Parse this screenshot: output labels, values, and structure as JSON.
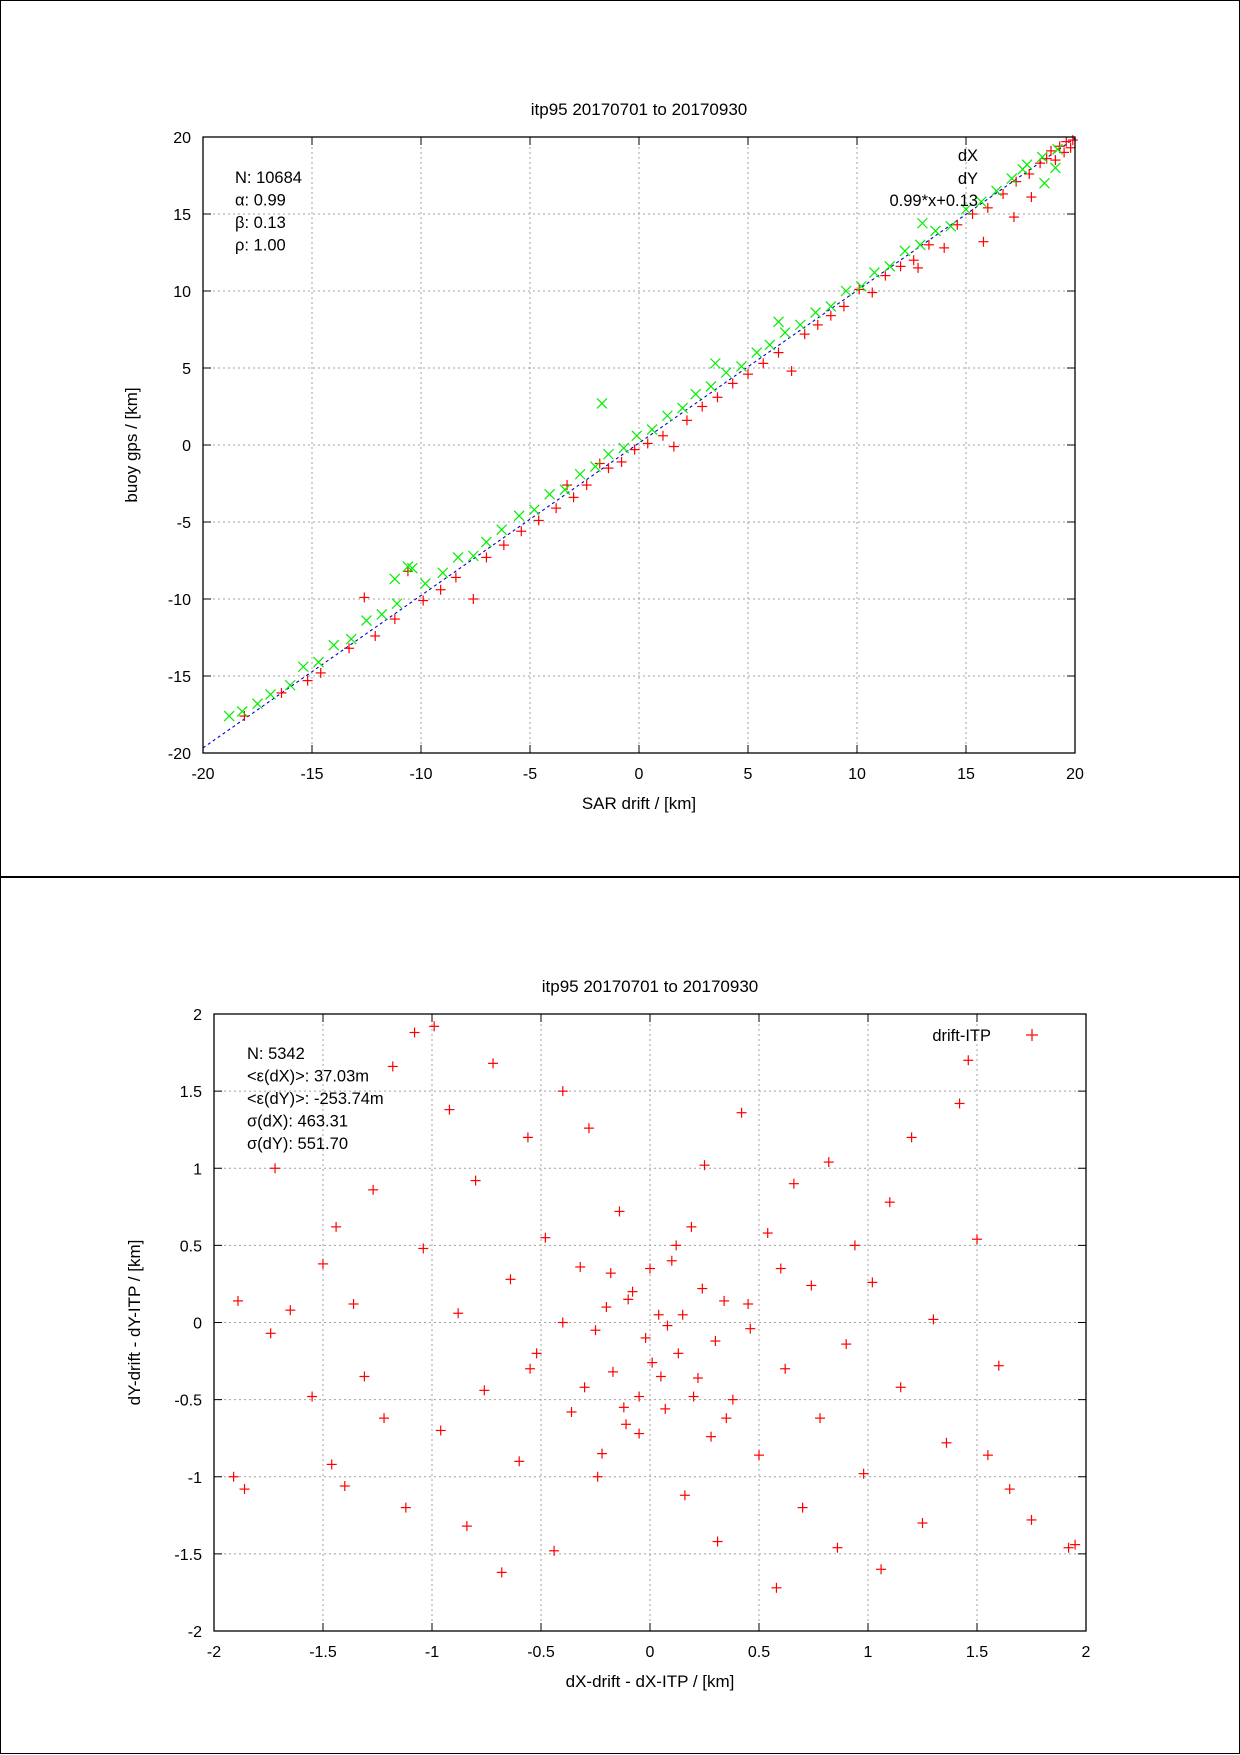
{
  "colors": {
    "red": "#ff0000",
    "green": "#00ee00",
    "fit": "#0000cc"
  },
  "chart_data": [
    {
      "type": "scatter",
      "title": "itp95 20170701 to 20170930",
      "xlabel": "SAR drift / [km]",
      "ylabel": "buoy gps / [km]",
      "xlim": [
        -20,
        20
      ],
      "ylim": [
        -20,
        20
      ],
      "xticks": [
        "-20",
        "-15",
        "-10",
        "-5",
        "0",
        "5",
        "10",
        "15",
        "20"
      ],
      "yticks": [
        "-20",
        "-15",
        "-10",
        "-5",
        "0",
        "5",
        "10",
        "15",
        "20"
      ],
      "grid": true,
      "legend_position": "top-right",
      "stats": [
        "N: 10684",
        "α: 0.99",
        "β: 0.13",
        "ρ: 1.00"
      ],
      "fit": {
        "label": "0.99*x+0.13",
        "slope": 0.99,
        "intercept": 0.13
      },
      "series": [
        {
          "name": "dX",
          "marker": "+",
          "color": "#ff0000",
          "points": [
            [
              -18.1,
              -17.6
            ],
            [
              -16.4,
              -16.1
            ],
            [
              -15.2,
              -15.3
            ],
            [
              -14.6,
              -14.8
            ],
            [
              -13.3,
              -13.2
            ],
            [
              -12.1,
              -12.4
            ],
            [
              -11.2,
              -11.3
            ],
            [
              -10.6,
              -8.2
            ],
            [
              -9.9,
              -10.1
            ],
            [
              -9.1,
              -9.4
            ],
            [
              -8.4,
              -8.6
            ],
            [
              -7.6,
              -10.0
            ],
            [
              -7.0,
              -7.3
            ],
            [
              -6.2,
              -6.5
            ],
            [
              -5.4,
              -5.6
            ],
            [
              -4.6,
              -4.9
            ],
            [
              -3.8,
              -4.1
            ],
            [
              -3.0,
              -3.4
            ],
            [
              -2.4,
              -2.6
            ],
            [
              -1.8,
              -1.2
            ],
            [
              -1.4,
              -1.5
            ],
            [
              -0.8,
              -1.1
            ],
            [
              -0.2,
              -0.3
            ],
            [
              0.4,
              0.1
            ],
            [
              1.1,
              0.6
            ],
            [
              1.6,
              -0.1
            ],
            [
              2.2,
              1.6
            ],
            [
              2.9,
              2.5
            ],
            [
              3.6,
              3.1
            ],
            [
              4.3,
              4.0
            ],
            [
              5.0,
              4.6
            ],
            [
              5.7,
              5.3
            ],
            [
              6.4,
              6.0
            ],
            [
              7.0,
              4.8
            ],
            [
              7.6,
              7.2
            ],
            [
              8.2,
              7.8
            ],
            [
              8.8,
              8.4
            ],
            [
              9.4,
              9.0
            ],
            [
              10.1,
              10.1
            ],
            [
              10.7,
              9.9
            ],
            [
              11.3,
              11.0
            ],
            [
              12.0,
              11.6
            ],
            [
              12.6,
              12.0
            ],
            [
              13.3,
              13.0
            ],
            [
              14.0,
              12.8
            ],
            [
              14.6,
              14.3
            ],
            [
              15.3,
              15.0
            ],
            [
              16.0,
              15.4
            ],
            [
              16.7,
              16.3
            ],
            [
              17.3,
              17.1
            ],
            [
              17.9,
              17.6
            ],
            [
              18.4,
              18.3
            ],
            [
              18.7,
              18.6
            ],
            [
              18.9,
              19.1
            ],
            [
              19.1,
              18.5
            ],
            [
              19.3,
              19.4
            ],
            [
              19.5,
              19.0
            ],
            [
              19.6,
              19.7
            ],
            [
              19.8,
              19.3
            ],
            [
              19.9,
              19.8
            ],
            [
              17.2,
              14.8
            ],
            [
              18.0,
              16.1
            ],
            [
              15.8,
              13.2
            ],
            [
              12.8,
              11.5
            ],
            [
              -3.3,
              -2.6
            ],
            [
              -12.6,
              -9.9
            ]
          ]
        },
        {
          "name": "dY",
          "marker": "x",
          "color": "#00ee00",
          "points": [
            [
              -18.8,
              -17.6
            ],
            [
              -18.2,
              -17.3
            ],
            [
              -17.5,
              -16.8
            ],
            [
              -16.9,
              -16.2
            ],
            [
              -16.0,
              -15.6
            ],
            [
              -15.4,
              -14.4
            ],
            [
              -14.7,
              -14.1
            ],
            [
              -14.0,
              -13.0
            ],
            [
              -13.2,
              -12.6
            ],
            [
              -12.5,
              -11.4
            ],
            [
              -11.8,
              -11.0
            ],
            [
              -11.1,
              -10.3
            ],
            [
              -10.4,
              -8.0
            ],
            [
              -9.8,
              -9.0
            ],
            [
              -9.0,
              -8.3
            ],
            [
              -8.3,
              -7.3
            ],
            [
              -7.6,
              -7.2
            ],
            [
              -7.0,
              -6.3
            ],
            [
              -6.3,
              -5.5
            ],
            [
              -5.5,
              -4.6
            ],
            [
              -4.8,
              -4.2
            ],
            [
              -4.1,
              -3.2
            ],
            [
              -3.4,
              -2.9
            ],
            [
              -2.7,
              -1.9
            ],
            [
              -2.0,
              -1.4
            ],
            [
              -1.4,
              -0.6
            ],
            [
              -0.7,
              -0.2
            ],
            [
              -0.1,
              0.6
            ],
            [
              0.6,
              1.0
            ],
            [
              1.3,
              1.9
            ],
            [
              2.0,
              2.4
            ],
            [
              2.6,
              3.3
            ],
            [
              3.3,
              3.8
            ],
            [
              4.0,
              4.7
            ],
            [
              4.7,
              5.1
            ],
            [
              5.4,
              6.0
            ],
            [
              6.0,
              6.5
            ],
            [
              6.7,
              7.3
            ],
            [
              7.4,
              7.8
            ],
            [
              8.1,
              8.6
            ],
            [
              8.8,
              9.0
            ],
            [
              9.5,
              10.0
            ],
            [
              10.2,
              10.3
            ],
            [
              10.8,
              11.2
            ],
            [
              11.5,
              11.6
            ],
            [
              12.2,
              12.6
            ],
            [
              12.9,
              13.0
            ],
            [
              13.6,
              13.9
            ],
            [
              14.3,
              14.2
            ],
            [
              15.0,
              15.3
            ],
            [
              15.7,
              15.8
            ],
            [
              16.4,
              16.5
            ],
            [
              17.1,
              17.3
            ],
            [
              17.8,
              18.2
            ],
            [
              18.5,
              18.7
            ],
            [
              19.2,
              19.2
            ],
            [
              -1.7,
              2.7
            ],
            [
              -10.6,
              -7.9
            ],
            [
              -11.2,
              -8.7
            ],
            [
              3.5,
              5.3
            ],
            [
              6.4,
              8.0
            ],
            [
              13.0,
              14.4
            ],
            [
              17.6,
              17.9
            ],
            [
              18.6,
              17.0
            ],
            [
              19.1,
              18.0
            ]
          ]
        }
      ]
    },
    {
      "type": "scatter",
      "title": "itp95 20170701 to 20170930",
      "xlabel": "dX-drift - dX-ITP / [km]",
      "ylabel": "dY-drift - dY-ITP / [km]",
      "xlim": [
        -2,
        2
      ],
      "ylim": [
        -2,
        2
      ],
      "xticks": [
        "-2",
        "-1.5",
        "-1",
        "-0.5",
        "0",
        "0.5",
        "1",
        "1.5",
        "2"
      ],
      "yticks": [
        "-2",
        "-1.5",
        "-1",
        "-0.5",
        "0",
        "0.5",
        "1",
        "1.5",
        "2"
      ],
      "grid": true,
      "legend_position": "top-right",
      "stats": [
        "N: 5342",
        "<ε(dX)>:  37.03m",
        "<ε(dY)>: -253.74m",
        "σ(dX):  463.31",
        "σ(dY):  551.70"
      ],
      "series": [
        {
          "name": "drift-ITP",
          "marker": "+",
          "color": "#ff0000",
          "points": [
            [
              -1.91,
              -1.0
            ],
            [
              -1.89,
              0.14
            ],
            [
              -1.86,
              -1.08
            ],
            [
              -1.74,
              -0.07
            ],
            [
              -1.72,
              1.0
            ],
            [
              -1.65,
              0.08
            ],
            [
              -1.55,
              -0.48
            ],
            [
              -1.5,
              0.38
            ],
            [
              -1.46,
              -0.92
            ],
            [
              -1.44,
              0.62
            ],
            [
              -1.4,
              -1.06
            ],
            [
              -1.36,
              0.12
            ],
            [
              -1.31,
              -0.35
            ],
            [
              -1.27,
              0.86
            ],
            [
              -1.22,
              -0.62
            ],
            [
              -1.18,
              1.66
            ],
            [
              -1.12,
              -1.2
            ],
            [
              -1.08,
              1.88
            ],
            [
              -1.04,
              0.48
            ],
            [
              -0.99,
              1.92
            ],
            [
              -0.96,
              -0.7
            ],
            [
              -0.92,
              1.38
            ],
            [
              -0.88,
              0.06
            ],
            [
              -0.84,
              -1.32
            ],
            [
              -0.8,
              0.92
            ],
            [
              -0.76,
              -0.44
            ],
            [
              -0.72,
              1.68
            ],
            [
              -0.68,
              -1.62
            ],
            [
              -0.64,
              0.28
            ],
            [
              -0.6,
              -0.9
            ],
            [
              -0.56,
              1.2
            ],
            [
              -0.52,
              -0.2
            ],
            [
              -0.48,
              0.55
            ],
            [
              -0.44,
              -1.48
            ],
            [
              -0.4,
              1.5
            ],
            [
              -0.36,
              -0.58
            ],
            [
              -0.32,
              0.36
            ],
            [
              -0.28,
              1.26
            ],
            [
              -0.24,
              -1.0
            ],
            [
              -0.2,
              0.1
            ],
            [
              -0.17,
              -0.32
            ],
            [
              -0.14,
              0.72
            ],
            [
              -0.11,
              -0.66
            ],
            [
              -0.08,
              0.2
            ],
            [
              -0.05,
              -0.48
            ],
            [
              -0.02,
              -0.1
            ],
            [
              0.01,
              -0.26
            ],
            [
              0.04,
              0.05
            ],
            [
              0.07,
              -0.56
            ],
            [
              0.1,
              0.4
            ],
            [
              0.13,
              -0.2
            ],
            [
              0.16,
              -1.12
            ],
            [
              0.19,
              0.62
            ],
            [
              0.22,
              -0.36
            ],
            [
              0.25,
              1.02
            ],
            [
              0.28,
              -0.74
            ],
            [
              0.31,
              -1.42
            ],
            [
              0.34,
              0.14
            ],
            [
              0.38,
              -0.5
            ],
            [
              0.42,
              1.36
            ],
            [
              0.46,
              -0.04
            ],
            [
              0.5,
              -0.86
            ],
            [
              0.54,
              0.58
            ],
            [
              0.58,
              -1.72
            ],
            [
              0.62,
              -0.3
            ],
            [
              0.66,
              0.9
            ],
            [
              0.7,
              -1.2
            ],
            [
              0.74,
              0.24
            ],
            [
              0.78,
              -0.62
            ],
            [
              0.82,
              1.04
            ],
            [
              0.86,
              -1.46
            ],
            [
              0.9,
              -0.14
            ],
            [
              0.94,
              0.5
            ],
            [
              0.98,
              -0.98
            ],
            [
              1.02,
              0.26
            ],
            [
              1.06,
              -1.6
            ],
            [
              1.1,
              0.78
            ],
            [
              1.15,
              -0.42
            ],
            [
              1.2,
              1.2
            ],
            [
              1.25,
              -1.3
            ],
            [
              1.3,
              0.02
            ],
            [
              1.36,
              -0.78
            ],
            [
              1.42,
              1.42
            ],
            [
              1.46,
              1.7
            ],
            [
              1.5,
              0.54
            ],
            [
              1.55,
              -0.86
            ],
            [
              1.6,
              -0.28
            ],
            [
              1.65,
              -1.08
            ],
            [
              1.75,
              -1.28
            ],
            [
              1.92,
              -1.46
            ],
            [
              1.95,
              -1.44
            ],
            [
              -0.25,
              -0.05
            ],
            [
              0.05,
              -0.35
            ],
            [
              -0.1,
              0.15
            ],
            [
              0.15,
              0.05
            ],
            [
              -0.3,
              -0.42
            ],
            [
              0.3,
              -0.12
            ],
            [
              0.0,
              0.35
            ],
            [
              -0.05,
              -0.72
            ],
            [
              0.2,
              -0.48
            ],
            [
              -0.18,
              0.32
            ],
            [
              0.08,
              -0.02
            ],
            [
              -0.12,
              -0.55
            ],
            [
              0.24,
              0.22
            ],
            [
              0.35,
              -0.62
            ],
            [
              -0.4,
              0.0
            ],
            [
              0.12,
              0.5
            ],
            [
              -0.22,
              -0.85
            ],
            [
              0.45,
              0.12
            ],
            [
              -0.55,
              -0.3
            ],
            [
              0.6,
              0.35
            ]
          ]
        }
      ]
    }
  ]
}
